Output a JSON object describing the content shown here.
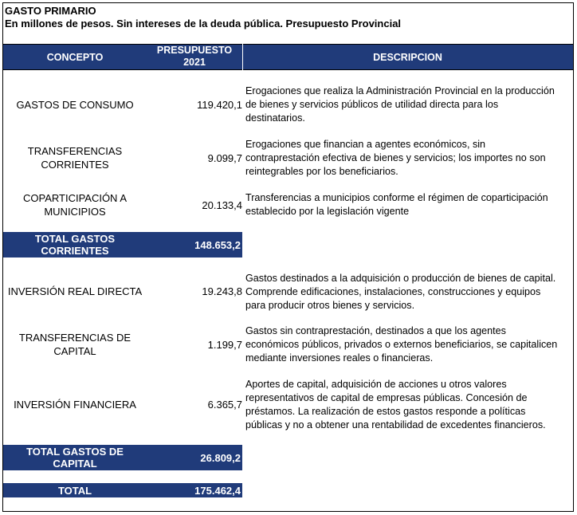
{
  "title": "GASTO PRIMARIO",
  "subtitle": "En millones de pesos. Sin intereses de la deuda pública. Presupuesto Provincial",
  "header": {
    "concept": "CONCEPTO",
    "budget_line1": "PRESUPUESTO",
    "budget_line2": "2021",
    "description": "DESCRIPCION"
  },
  "rows": [
    {
      "concept_lines": [
        "GASTOS DE CONSUMO"
      ],
      "value": "119.420,1",
      "desc_lines": [
        "Erogaciones que realiza la Administración Provincial en la producción",
        "de bienes y servicios públicos de utilidad directa para los",
        "destinatarios."
      ]
    },
    {
      "concept_lines": [
        "TRANSFERENCIAS",
        "CORRIENTES"
      ],
      "value": "9.099,7",
      "desc_lines": [
        "Erogaciones que financian a agentes económicos, sin",
        "contraprestación efectiva de bienes y servicios; los importes no son",
        "reintegrables por los beneficiarios."
      ]
    },
    {
      "concept_lines": [
        "COPARTICIPACIÓN A",
        "MUNICIPIOS"
      ],
      "value": "20.133,4",
      "desc_lines": [
        "Transferencias a municipios conforme el régimen de coparticipación",
        "establecido por la legislación vigente"
      ]
    },
    {
      "concept_lines": [
        "INVERSIÓN REAL DIRECTA"
      ],
      "value": "19.243,8",
      "desc_lines": [
        "Gastos destinados a la adquisición o producción de bienes de capital.",
        "Comprende edificaciones, instalaciones, construcciones y equipos",
        "para producir otros bienes y servicios."
      ]
    },
    {
      "concept_lines": [
        "TRANSFERENCIAS DE",
        "CAPITAL"
      ],
      "value": "1.199,7",
      "desc_lines": [
        "Gastos sin contraprestación, destinados a que los agentes",
        "económicos públicos, privados o externos beneficiarios, se capitalicen",
        "mediante inversiones reales o financieras."
      ]
    },
    {
      "concept_lines": [
        "INVERSIÓN FINANCIERA"
      ],
      "value": "6.365,7",
      "desc_lines": [
        "Aportes de capital, adquisición de acciones u otros valores",
        "representativos de capital de empresas públicas. Concesión de",
        "préstamos. La realización de estos gastos responde a políticas",
        "públicas y no a obtener una rentabilidad de excedentes financieros."
      ]
    }
  ],
  "totals": [
    {
      "label_lines": [
        "TOTAL GASTOS",
        "CORRIENTES"
      ],
      "value": "148.653,2"
    },
    {
      "label_lines": [
        "TOTAL GASTOS DE",
        "CAPITAL"
      ],
      "value": "26.809,2"
    },
    {
      "label_lines": [
        "TOTAL"
      ],
      "value": "175.462,4"
    }
  ],
  "colors": {
    "header_band": "#203b7a",
    "header_text": "#ffffff"
  }
}
